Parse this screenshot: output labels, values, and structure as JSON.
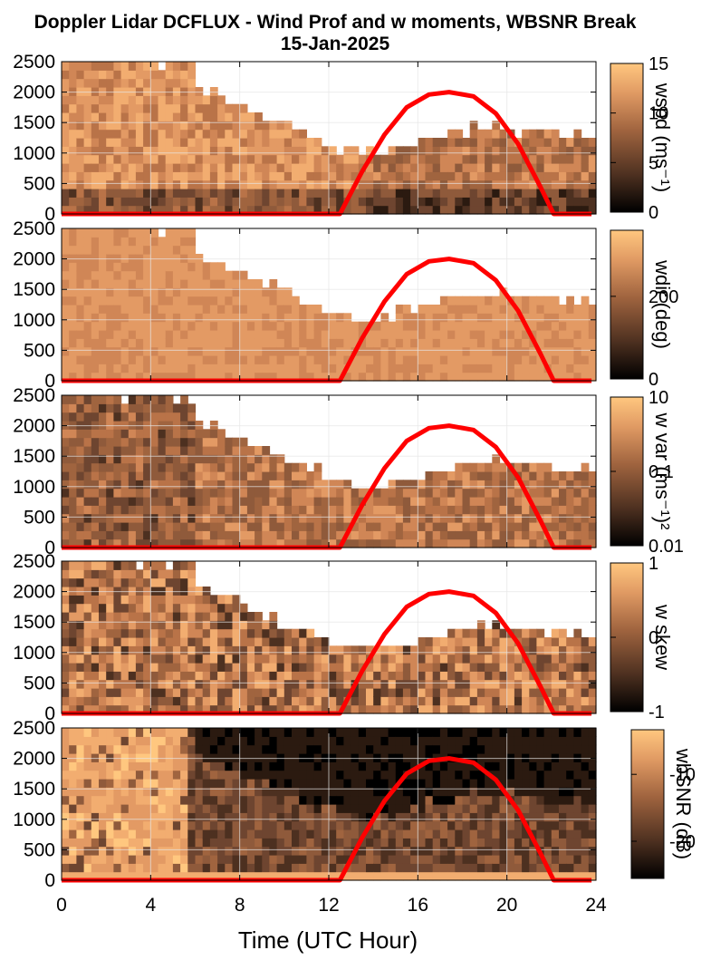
{
  "figure": {
    "title_line1": "Doppler Lidar DCFLUX - Wind Prof and w moments, WBSNR Break",
    "title_line2": "15-Jan-2025",
    "xlabel": "Time (UTC Hour)",
    "xticks": [
      "0",
      "4",
      "8",
      "12",
      "16",
      "20",
      "24"
    ],
    "yticks": [
      "0",
      "500",
      "1000",
      "1500",
      "2000",
      "2500"
    ]
  },
  "chart_data": [
    {
      "type": "heatmap",
      "name": "wspd",
      "colorbar_label": "wspd (ms⁻¹)",
      "colorbar_ticks": [
        "0",
        "5",
        "10",
        "15"
      ],
      "clim": [
        0,
        15
      ],
      "xlim": [
        0,
        24
      ],
      "ylim": [
        0,
        2500
      ],
      "grid": true,
      "overlay": "solar elevation curve (red)"
    },
    {
      "type": "heatmap",
      "name": "wdir",
      "colorbar_label": "wdir (deg)",
      "colorbar_ticks": [
        "0",
        "200"
      ],
      "clim": [
        0,
        360
      ],
      "xlim": [
        0,
        24
      ],
      "ylim": [
        0,
        2500
      ],
      "grid": true,
      "overlay": "solar elevation curve (red)"
    },
    {
      "type": "heatmap",
      "name": "wvar",
      "colorbar_label": "w var (ms⁻¹)²",
      "colorbar_ticks": [
        "0.01",
        "0.1",
        "10"
      ],
      "colorbar_scale": "log",
      "xlim": [
        0,
        24
      ],
      "ylim": [
        0,
        2500
      ],
      "grid": true,
      "overlay": "solar elevation curve (red)"
    },
    {
      "type": "heatmap",
      "name": "wskew",
      "colorbar_label": "w skew",
      "colorbar_ticks": [
        "-1",
        "0",
        "1"
      ],
      "clim": [
        -1,
        1
      ],
      "xlim": [
        0,
        24
      ],
      "ylim": [
        0,
        2500
      ],
      "grid": true,
      "overlay": "solar elevation curve (red)"
    },
    {
      "type": "heatmap",
      "name": "wbsnr",
      "colorbar_label": "wbSNR (dB)",
      "colorbar_ticks": [
        "-20",
        "-10"
      ],
      "xlim": [
        0,
        24
      ],
      "ylim": [
        0,
        2500
      ],
      "grid": true,
      "overlay": "solar elevation curve (red)"
    }
  ],
  "overlay_curve": {
    "color": "#ff0000",
    "points": [
      {
        "x": 0,
        "y": 0
      },
      {
        "x": 12.5,
        "y": 0
      },
      {
        "x": 13.5,
        "y": 700
      },
      {
        "x": 14.5,
        "y": 1300
      },
      {
        "x": 15.5,
        "y": 1750
      },
      {
        "x": 16.5,
        "y": 1960
      },
      {
        "x": 17.4,
        "y": 2000
      },
      {
        "x": 18.5,
        "y": 1930
      },
      {
        "x": 19.5,
        "y": 1650
      },
      {
        "x": 20.5,
        "y": 1150
      },
      {
        "x": 21.5,
        "y": 450
      },
      {
        "x": 22.1,
        "y": 0
      },
      {
        "x": 23.8,
        "y": 0
      }
    ]
  },
  "colors": {
    "colormap_low": "#000000",
    "colormap_mid": "#a0643f",
    "colormap_high": "#ffc77f",
    "curve": "#ff0000",
    "grid": "#e6e6e6"
  }
}
